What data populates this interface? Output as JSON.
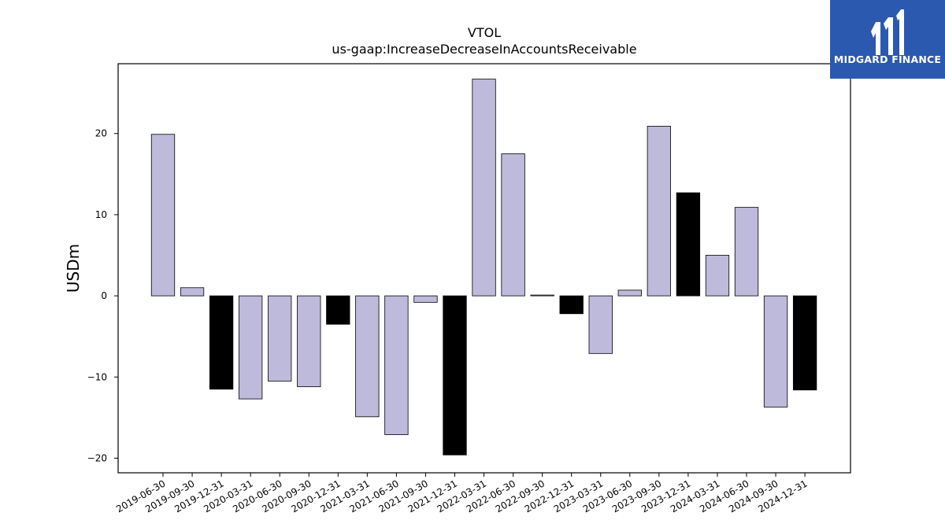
{
  "brand": {
    "name": "MIDGARD FINANCE",
    "color": "#2b59b0"
  },
  "colors": {
    "bar_fill": "#bebadb",
    "bar_fill_year_end": "#000000",
    "bar_stroke": "#000000"
  },
  "chart_data": {
    "type": "bar",
    "title": "VTOL",
    "subtitle": "us-gaap:IncreaseDecreaseInAccountsReceivable",
    "xlabel": "",
    "ylabel": "USDm",
    "ylim": [
      -21.8,
      28.6
    ],
    "yticks": [
      -20,
      -10,
      0,
      10,
      20
    ],
    "ytick_labels": [
      "−20",
      "−10",
      "0",
      "10",
      "20"
    ],
    "grid": false,
    "legend": "none",
    "categories": [
      "2019-06-30",
      "2019-09-30",
      "2019-12-31",
      "2020-03-31",
      "2020-06-30",
      "2020-09-30",
      "2020-12-31",
      "2021-03-31",
      "2021-06-30",
      "2021-09-30",
      "2021-12-31",
      "2022-03-31",
      "2022-06-30",
      "2022-09-30",
      "2022-12-31",
      "2023-03-31",
      "2023-06-30",
      "2023-09-30",
      "2023-12-31",
      "2024-03-31",
      "2024-06-30",
      "2024-09-30",
      "2024-12-31"
    ],
    "values": [
      19.9,
      1.0,
      -11.5,
      -12.7,
      -10.5,
      -11.2,
      -3.5,
      -14.9,
      -17.1,
      -0.8,
      -19.6,
      26.7,
      17.5,
      0.1,
      -2.2,
      -7.1,
      0.7,
      20.9,
      12.7,
      5.0,
      10.9,
      -13.7,
      -11.6
    ]
  }
}
